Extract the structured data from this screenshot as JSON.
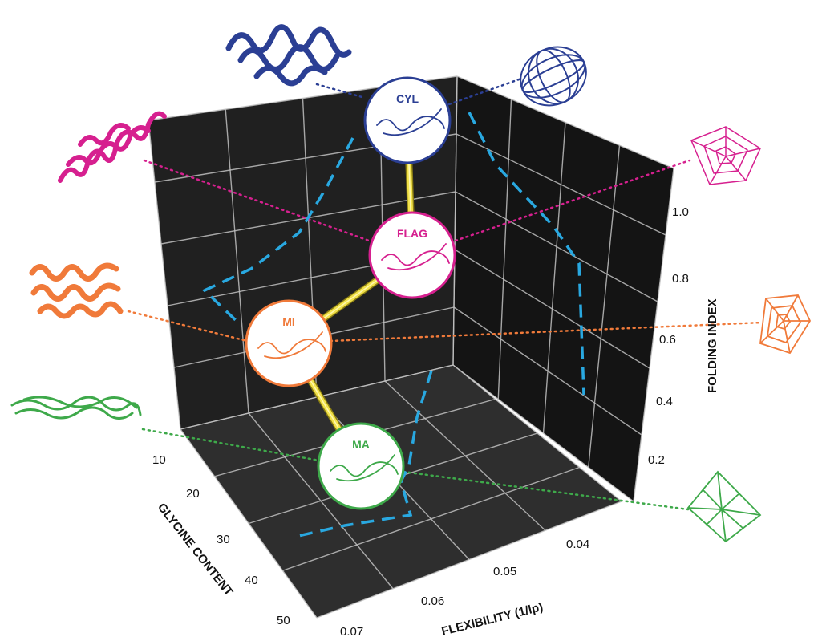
{
  "chart_data": {
    "type": "3d-scatter",
    "title": "",
    "axes": {
      "glycine_content": {
        "label": "GLYCINE CONTENT",
        "ticks": [
          "10",
          "20",
          "30",
          "40",
          "50"
        ]
      },
      "flexibility": {
        "label": "FLEXIBILITY (1/lp)",
        "ticks": [
          "0.04",
          "0.05",
          "0.06",
          "0.07"
        ]
      },
      "folding_index": {
        "label": "FOLDING INDEX",
        "ticks": [
          "0.2",
          "0.4",
          "0.6",
          "0.8",
          "1.0"
        ]
      }
    },
    "grid": true,
    "points": [
      {
        "label": "CYL",
        "color": "#2b3f94",
        "glycine": 10,
        "flexibility": 0.04,
        "folding": 1.0
      },
      {
        "label": "FLAG",
        "color": "#d6208f",
        "glycine": 30,
        "flexibility": 0.045,
        "folding": 0.85
      },
      {
        "label": "MI",
        "color": "#f07a3a",
        "glycine": 30,
        "flexibility": 0.06,
        "folding": 0.55
      },
      {
        "label": "MA",
        "color": "#3ea94a",
        "glycine": 45,
        "flexibility": 0.055,
        "folding": 0.2
      }
    ],
    "connector_color": "#f2e24b",
    "projection_color": "#29a8e0"
  }
}
